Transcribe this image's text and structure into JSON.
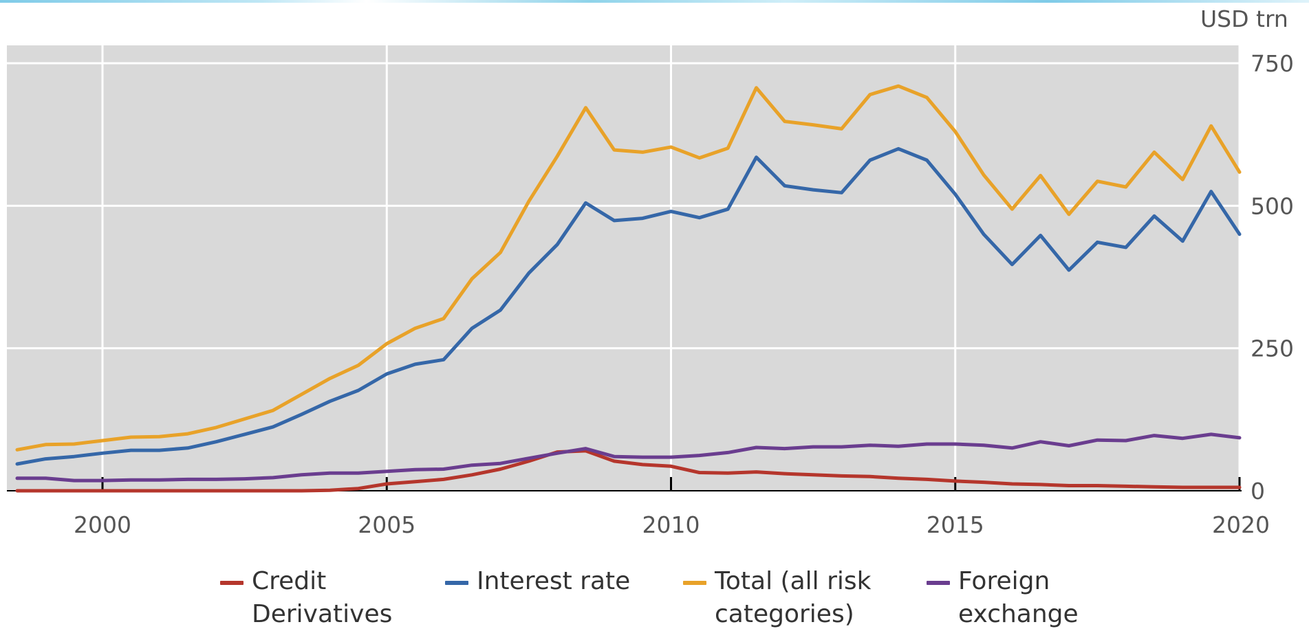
{
  "chart_data": {
    "type": "line",
    "unit_label": "USD trn",
    "xlim": [
      1998.5,
      2020
    ],
    "ylim": [
      0,
      750
    ],
    "x_ticks": [
      2000,
      2005,
      2010,
      2015,
      2020
    ],
    "y_ticks": [
      0,
      250,
      500,
      750
    ],
    "grid": true,
    "legend_position": "bottom",
    "series": [
      {
        "name": "Credit\nDerivatives",
        "color": "#b5362c",
        "x": [
          1998.5,
          1999,
          1999.5,
          2000,
          2000.5,
          2001,
          2001.5,
          2002,
          2002.5,
          2003,
          2003.5,
          2004,
          2004.5,
          2005,
          2005.5,
          2006,
          2006.5,
          2007,
          2007.5,
          2008,
          2008.5,
          2009,
          2009.5,
          2010,
          2010.5,
          2011,
          2011.5,
          2012,
          2012.5,
          2013,
          2013.5,
          2014,
          2014.5,
          2015,
          2015.5,
          2016,
          2016.5,
          2017,
          2017.5,
          2018,
          2018.5,
          2019,
          2019.5,
          2020
        ],
        "values": [
          0,
          0,
          0,
          0,
          0,
          0,
          0,
          0,
          0,
          0,
          0,
          1,
          4,
          12,
          16,
          20,
          28,
          38,
          52,
          68,
          70,
          52,
          46,
          43,
          32,
          31,
          33,
          30,
          28,
          26,
          25,
          22,
          20,
          17,
          15,
          12,
          11,
          9,
          9,
          8,
          7,
          6,
          6,
          6
        ]
      },
      {
        "name": "Interest rate",
        "color": "#3567a8",
        "x": [
          1998.5,
          1999,
          1999.5,
          2000,
          2000.5,
          2001,
          2001.5,
          2002,
          2002.5,
          2003,
          2003.5,
          2004,
          2004.5,
          2005,
          2005.5,
          2006,
          2006.5,
          2007,
          2007.5,
          2008,
          2008.5,
          2009,
          2009.5,
          2010,
          2010.5,
          2011,
          2011.5,
          2012,
          2012.5,
          2013,
          2013.5,
          2014,
          2014.5,
          2015,
          2015.5,
          2016,
          2016.5,
          2017,
          2017.5,
          2018,
          2018.5,
          2019,
          2019.5,
          2020
        ],
        "values": [
          47,
          56,
          60,
          66,
          71,
          71,
          75,
          86,
          99,
          112,
          134,
          157,
          176,
          205,
          222,
          230,
          285,
          317,
          382,
          432,
          505,
          474,
          478,
          490,
          479,
          494,
          585,
          535,
          528,
          523,
          580,
          600,
          580,
          520,
          450,
          397,
          448,
          387,
          436,
          427,
          482,
          438,
          525,
          450
        ]
      },
      {
        "name": "Total (all risk\ncategories)",
        "color": "#e8a229",
        "x": [
          1998.5,
          1999,
          1999.5,
          2000,
          2000.5,
          2001,
          2001.5,
          2002,
          2002.5,
          2003,
          2003.5,
          2004,
          2004.5,
          2005,
          2005.5,
          2006,
          2006.5,
          2007,
          2007.5,
          2008,
          2008.5,
          2009,
          2009.5,
          2010,
          2010.5,
          2011,
          2011.5,
          2012,
          2012.5,
          2013,
          2013.5,
          2014,
          2014.5,
          2015,
          2015.5,
          2016,
          2016.5,
          2017,
          2017.5,
          2018,
          2018.5,
          2019,
          2019.5,
          2020
        ],
        "values": [
          72,
          81,
          82,
          88,
          94,
          95,
          100,
          111,
          126,
          141,
          169,
          197,
          220,
          258,
          285,
          302,
          372,
          418,
          508,
          587,
          672,
          598,
          594,
          603,
          584,
          601,
          707,
          648,
          642,
          635,
          695,
          710,
          690,
          630,
          554,
          494,
          553,
          485,
          543,
          533,
          594,
          546,
          640,
          559
        ]
      },
      {
        "name": "Foreign\nexchange",
        "color": "#6a3d8f",
        "x": [
          1998.5,
          1999,
          1999.5,
          2000,
          2000.5,
          2001,
          2001.5,
          2002,
          2002.5,
          2003,
          2003.5,
          2004,
          2004.5,
          2005,
          2005.5,
          2006,
          2006.5,
          2007,
          2007.5,
          2008,
          2008.5,
          2009,
          2009.5,
          2010,
          2010.5,
          2011,
          2011.5,
          2012,
          2012.5,
          2013,
          2013.5,
          2014,
          2014.5,
          2015,
          2015.5,
          2016,
          2016.5,
          2017,
          2017.5,
          2018,
          2018.5,
          2019,
          2019.5,
          2020
        ],
        "values": [
          22,
          22,
          18,
          18,
          19,
          19,
          20,
          20,
          21,
          23,
          28,
          31,
          31,
          34,
          37,
          38,
          45,
          48,
          57,
          66,
          74,
          60,
          59,
          59,
          62,
          67,
          76,
          74,
          77,
          77,
          80,
          78,
          82,
          82,
          80,
          75,
          86,
          79,
          89,
          88,
          97,
          92,
          99,
          93
        ]
      }
    ]
  }
}
